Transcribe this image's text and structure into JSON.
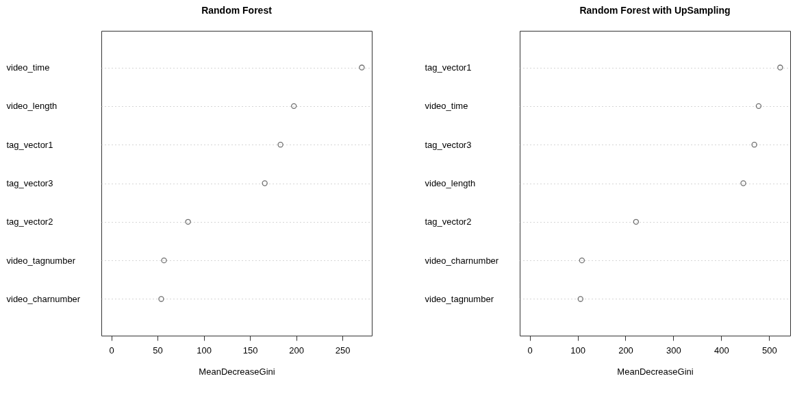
{
  "chart_data": [
    {
      "type": "scatter",
      "orientation": "horizontal",
      "title": "Random Forest",
      "xlabel": "MeanDecreaseGini",
      "categories": [
        "video_time",
        "video_length",
        "tag_vector1",
        "tag_vector3",
        "tag_vector2",
        "video_tagnumber",
        "video_charnumber"
      ],
      "series": [
        {
          "color": "#333333",
          "values": [
            271,
            197.5,
            183,
            166,
            83,
            57,
            54
          ]
        }
      ],
      "xlim": [
        -10.8,
        281.8
      ],
      "xticks": [
        0,
        50,
        100,
        150,
        200,
        250
      ],
      "grid": "y",
      "marker": "circle"
    },
    {
      "type": "scatter",
      "orientation": "horizontal",
      "title": "Random Forest with UpSampling",
      "xlabel": "MeanDecreaseGini",
      "categories": [
        "tag_vector1",
        "video_time",
        "tag_vector3",
        "video_length",
        "tag_vector2",
        "video_charnumber",
        "video_tagnumber"
      ],
      "series": [
        {
          "color": "#333333",
          "values": [
            523,
            478,
            469,
            446,
            222,
            109,
            106
          ]
        }
      ],
      "xlim": [
        -20.9,
        543.9
      ],
      "xticks": [
        0,
        100,
        200,
        300,
        400,
        500
      ],
      "grid": "y",
      "marker": "circle"
    }
  ]
}
